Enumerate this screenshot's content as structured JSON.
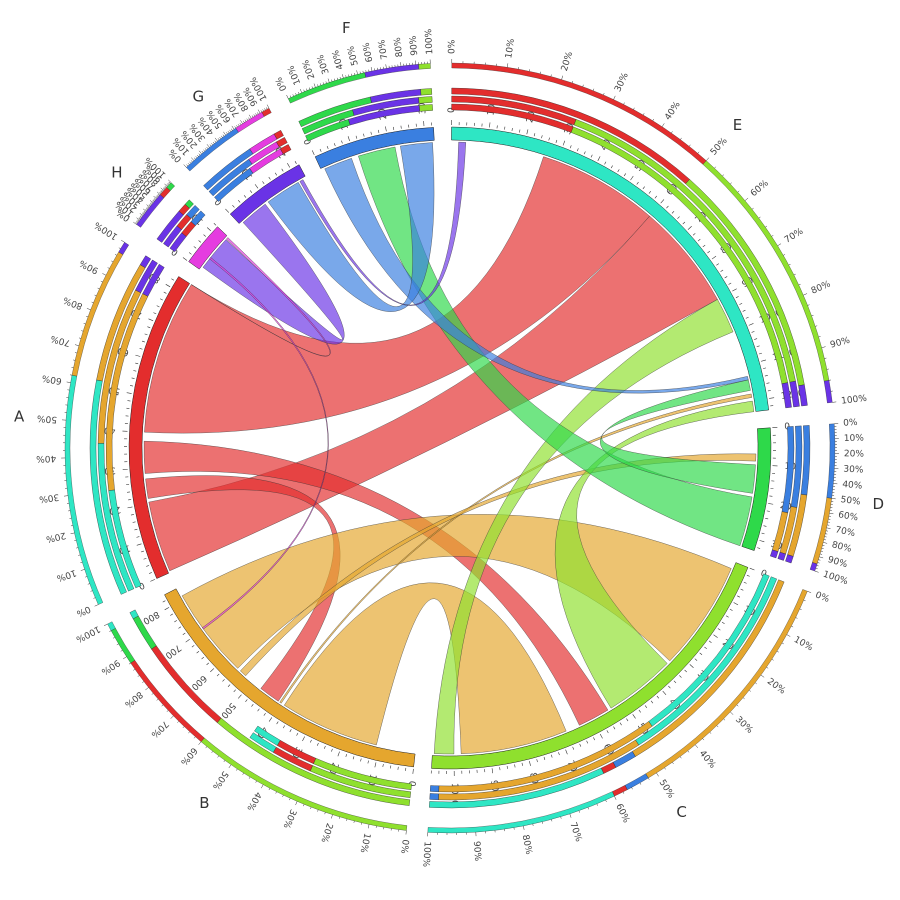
{
  "chart_data": {
    "type": "chord",
    "title": "",
    "segments": [
      {
        "name": "A",
        "size": 835,
        "color": "#e32d2d",
        "tick_step": 100
      },
      {
        "name": "H",
        "size": 120,
        "color": "#e53ce0",
        "tick_step": 100
      },
      {
        "name": "G",
        "size": 225,
        "color": "#6a33e6",
        "tick_step": 100
      },
      {
        "name": "F",
        "size": 325,
        "color": "#3a7fe0",
        "tick_step": 100
      },
      {
        "name": "E",
        "size": 1230,
        "color": "#2ee6c4",
        "tick_step": 100
      },
      {
        "name": "D",
        "size": 330,
        "color": "#2ed94a",
        "tick_step": 100
      },
      {
        "name": "C",
        "size": 1060,
        "color": "#8fe02e",
        "tick_step": 100
      },
      {
        "name": "B",
        "size": 835,
        "color": "#e5a62e",
        "tick_step": 100
      }
    ],
    "links": [
      {
        "source": "A",
        "source_range": [
          5,
          205
        ],
        "target": "E",
        "target_range": [
          600,
          900
        ]
      },
      {
        "source": "A",
        "source_range": [
          400,
          835
        ],
        "target": "E",
        "target_range": [
          260,
          600
        ]
      },
      {
        "source": "A",
        "source_range": [
          215,
          270
        ],
        "target": "B",
        "target_range": [
          410,
          470
        ]
      },
      {
        "source": "A",
        "source_range": [
          285,
          375
        ],
        "target": "C",
        "target_range": [
          550,
          640
        ]
      },
      {
        "source": "B",
        "source_range": [
          555,
          810
        ],
        "target": "C",
        "target_range": [
          20,
          330
        ]
      },
      {
        "source": "B",
        "source_range": [
          110,
          390
        ],
        "target": "C",
        "target_range": [
          680,
          980
        ]
      },
      {
        "source": "B",
        "source_range": [
          400,
          405
        ],
        "target": "E",
        "target_range": [
          1180,
          1190
        ]
      },
      {
        "source": "B",
        "source_range": [
          525,
          545
        ],
        "target": "D",
        "target_range": [
          70,
          90
        ]
      },
      {
        "source": "C",
        "source_range": [
          1000,
          1055
        ],
        "target": "E",
        "target_range": [
          900,
          1000
        ]
      },
      {
        "source": "C",
        "source_range": [
          340,
          540
        ],
        "target": "E",
        "target_range": [
          1200,
          1230
        ]
      },
      {
        "source": "D",
        "source_range": [
          190,
          330
        ],
        "target": "F",
        "target_range": [
          110,
          215
        ]
      },
      {
        "source": "D",
        "source_range": [
          100,
          180
        ],
        "target": "E",
        "target_range": [
          1140,
          1170
        ]
      },
      {
        "source": "F",
        "source_range": [
          10,
          90
        ],
        "target": "E",
        "target_range": [
          1130,
          1140
        ]
      },
      {
        "source": "F",
        "source_range": [
          230,
          320
        ],
        "target": "G",
        "target_range": [
          100,
          200
        ]
      },
      {
        "source": "G",
        "source_range": [
          10,
          90
        ],
        "target": "H",
        "target_range": [
          10,
          110
        ]
      },
      {
        "source": "H",
        "source_range": [
          112,
          118
        ],
        "target": "A",
        "target_range": [
          835,
          835
        ]
      },
      {
        "source": "G",
        "source_range": [
          205,
          215
        ],
        "target": "E",
        "target_range": [
          20,
          40
        ]
      },
      {
        "source": "H",
        "source_range": [
          40,
          45
        ],
        "target": "B",
        "target_range": [
          700,
          705
        ]
      }
    ],
    "composition": [
      {
        "segment": "A",
        "stacks": [
          [
            {
              "color": "#2ee6c4",
              "frac": 0.62
            },
            {
              "color": "#e5a62e",
              "frac": 0.35
            },
            {
              "color": "#6a33e6",
              "frac": 0.03
            }
          ],
          [
            {
              "color": "#2ee6c4",
              "frac": 0.44
            },
            {
              "color": "#e5a62e",
              "frac": 0.46
            },
            {
              "color": "#6a33e6",
              "frac": 0.1
            }
          ],
          [
            {
              "color": "#2ee6c4",
              "frac": 0.3
            },
            {
              "color": "#e5a62e",
              "frac": 0.6
            },
            {
              "color": "#6a33e6",
              "frac": 0.1
            }
          ]
        ]
      },
      {
        "segment": "H",
        "stacks": [
          [
            {
              "color": "#6a33e6",
              "frac": 0.7
            },
            {
              "color": "#e32d2d",
              "frac": 0.18
            },
            {
              "color": "#2ed94a",
              "frac": 0.12
            }
          ],
          [
            {
              "color": "#6a33e6",
              "frac": 0.45
            },
            {
              "color": "#e32d2d",
              "frac": 0.3
            },
            {
              "color": "#3a7fe0",
              "frac": 0.25
            }
          ],
          [
            {
              "color": "#6a33e6",
              "frac": 0.4
            },
            {
              "color": "#e32d2d",
              "frac": 0.3
            },
            {
              "color": "#3a7fe0",
              "frac": 0.3
            }
          ]
        ]
      },
      {
        "segment": "G",
        "stacks": [
          [
            {
              "color": "#3a7fe0",
              "frac": 0.62
            },
            {
              "color": "#e53ce0",
              "frac": 0.3
            },
            {
              "color": "#e32d2d",
              "frac": 0.08
            }
          ],
          [
            {
              "color": "#3a7fe0",
              "frac": 0.55
            },
            {
              "color": "#e53ce0",
              "frac": 0.35
            },
            {
              "color": "#e32d2d",
              "frac": 0.1
            }
          ],
          [
            {
              "color": "#3a7fe0",
              "frac": 0.5
            },
            {
              "color": "#e53ce0",
              "frac": 0.4
            },
            {
              "color": "#e32d2d",
              "frac": 0.1
            }
          ]
        ]
      },
      {
        "segment": "F",
        "stacks": [
          [
            {
              "color": "#2ed94a",
              "frac": 0.55
            },
            {
              "color": "#6a33e6",
              "frac": 0.37
            },
            {
              "color": "#8fe02e",
              "frac": 0.08
            }
          ],
          [
            {
              "color": "#2ed94a",
              "frac": 0.4
            },
            {
              "color": "#6a33e6",
              "frac": 0.5
            },
            {
              "color": "#8fe02e",
              "frac": 0.1
            }
          ],
          [
            {
              "color": "#2ed94a",
              "frac": 0.35
            },
            {
              "color": "#6a33e6",
              "frac": 0.55
            },
            {
              "color": "#8fe02e",
              "frac": 0.1
            }
          ]
        ]
      },
      {
        "segment": "E",
        "stacks": [
          [
            {
              "color": "#e32d2d",
              "frac": 0.5
            },
            {
              "color": "#8fe02e",
              "frac": 0.46
            },
            {
              "color": "#6a33e6",
              "frac": 0.04
            }
          ],
          [
            {
              "color": "#e32d2d",
              "frac": 0.25
            },
            {
              "color": "#8fe02e",
              "frac": 0.7
            },
            {
              "color": "#6a33e6",
              "frac": 0.05
            }
          ],
          [
            {
              "color": "#e32d2d",
              "frac": 0.25
            },
            {
              "color": "#8fe02e",
              "frac": 0.7
            },
            {
              "color": "#6a33e6",
              "frac": 0.05
            }
          ]
        ]
      },
      {
        "segment": "D",
        "stacks": [
          [
            {
              "color": "#3a7fe0",
              "frac": 0.5
            },
            {
              "color": "#e5a62e",
              "frac": 0.45
            },
            {
              "color": "#6a33e6",
              "frac": 0.05
            }
          ],
          [
            {
              "color": "#3a7fe0",
              "frac": 0.6
            },
            {
              "color": "#e5a62e",
              "frac": 0.35
            },
            {
              "color": "#6a33e6",
              "frac": 0.05
            }
          ],
          [
            {
              "color": "#3a7fe0",
              "frac": 0.65
            },
            {
              "color": "#e5a62e",
              "frac": 0.3
            },
            {
              "color": "#6a33e6",
              "frac": 0.05
            }
          ]
        ]
      },
      {
        "segment": "C",
        "stacks": [
          [
            {
              "color": "#e5a62e",
              "frac": 0.52
            },
            {
              "color": "#3a7fe0",
              "frac": 0.05
            },
            {
              "color": "#e32d2d",
              "frac": 0.03
            },
            {
              "color": "#2ee6c4",
              "frac": 0.4
            }
          ],
          [
            {
              "color": "#2ee6c4",
              "frac": 0.5
            },
            {
              "color": "#e5a62e",
              "frac": 0.48
            },
            {
              "color": "#3a7fe0",
              "frac": 0.02
            }
          ],
          [
            {
              "color": "#2ee6c4",
              "frac": 0.45
            },
            {
              "color": "#e5a62e",
              "frac": 0.53
            },
            {
              "color": "#3a7fe0",
              "frac": 0.02
            }
          ]
        ]
      },
      {
        "segment": "B",
        "stacks": [
          [
            {
              "color": "#8fe02e",
              "frac": 0.6
            },
            {
              "color": "#e32d2d",
              "frac": 0.28
            },
            {
              "color": "#2ed94a",
              "frac": 0.1
            },
            {
              "color": "#2ee6c4",
              "frac": 0.02
            }
          ],
          [
            {
              "color": "#8fe02e",
              "frac": 0.3
            },
            {
              "color": "#e32d2d",
              "frac": 0.12
            },
            {
              "color": "#2ee6c4",
              "frac": 0.08
            }
          ],
          [
            {
              "color": "#8fe02e",
              "frac": 0.3
            },
            {
              "color": "#e32d2d",
              "frac": 0.12
            },
            {
              "color": "#2ee6c4",
              "frac": 0.08
            }
          ]
        ]
      }
    ],
    "percent_labels": [
      "0%",
      "10%",
      "20%",
      "30%",
      "40%",
      "50%",
      "60%",
      "70%",
      "80%",
      "90%",
      "100%"
    ],
    "grid": false,
    "legend": "none"
  }
}
